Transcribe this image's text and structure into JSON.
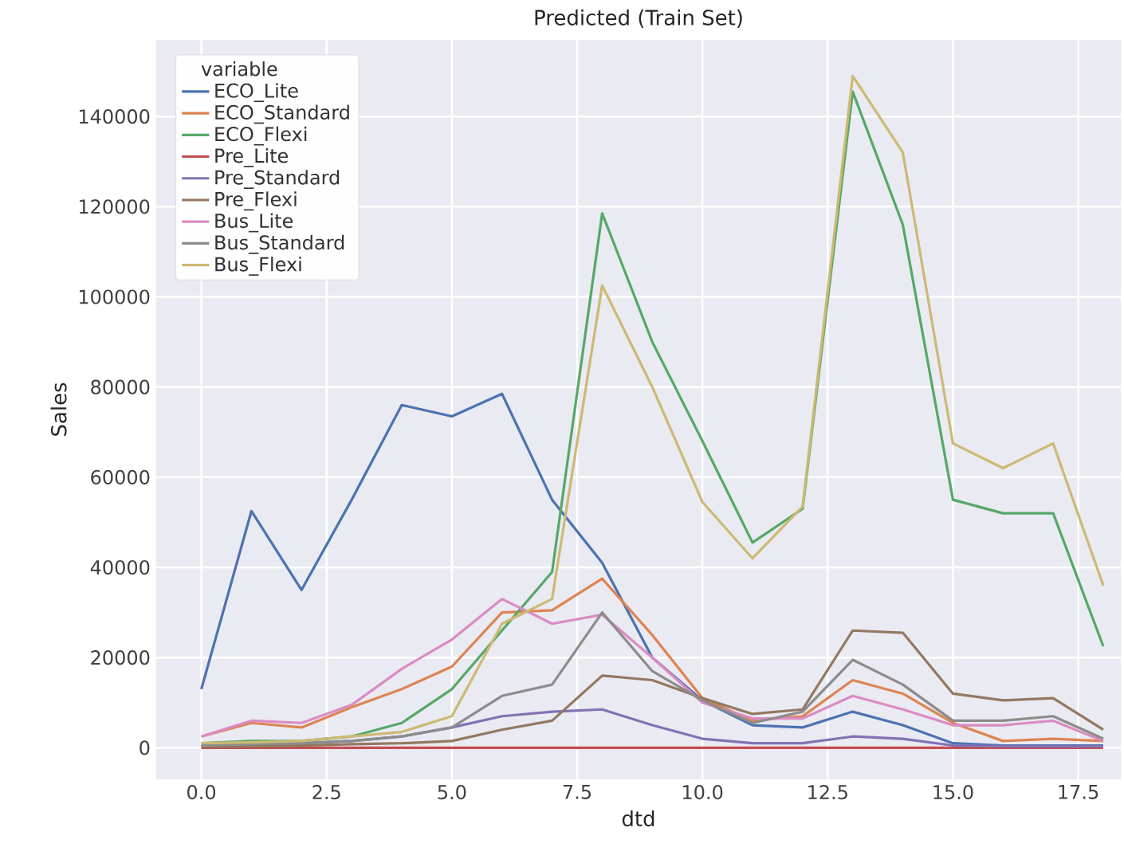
{
  "chart_data": {
    "type": "line",
    "title": "Predicted (Train Set)",
    "xlabel": "dtd",
    "ylabel": "Sales",
    "legend_title": "variable",
    "x": [
      0,
      1,
      2,
      3,
      4,
      5,
      6,
      7,
      8,
      9,
      10,
      11,
      12,
      13,
      14,
      15,
      16,
      17,
      18
    ],
    "xlim": [
      -0.9,
      18.35
    ],
    "ylim": [
      -7000,
      157000
    ],
    "xticks": [
      {
        "value": 0,
        "label": "0.0"
      },
      {
        "value": 2.5,
        "label": "2.5"
      },
      {
        "value": 5,
        "label": "5.0"
      },
      {
        "value": 7.5,
        "label": "7.5"
      },
      {
        "value": 10,
        "label": "10.0"
      },
      {
        "value": 12.5,
        "label": "12.5"
      },
      {
        "value": 15,
        "label": "15.0"
      },
      {
        "value": 17.5,
        "label": "17.5"
      }
    ],
    "yticks": [
      0,
      20000,
      40000,
      60000,
      80000,
      100000,
      120000,
      140000
    ],
    "grid": true,
    "legend": "top left",
    "marker": "none",
    "line_style": "solid",
    "series": [
      {
        "name": "ECO_Lite",
        "color": "#4c72b0",
        "values": [
          13000,
          52500,
          35000,
          55000,
          76000,
          73500,
          78500,
          55000,
          41000,
          20000,
          10500,
          5000,
          4500,
          8000,
          5000,
          1000,
          500,
          500,
          500
        ]
      },
      {
        "name": "ECO_Standard",
        "color": "#dd8452",
        "values": [
          2500,
          5500,
          4500,
          9000,
          13000,
          18000,
          30000,
          30500,
          37500,
          25000,
          11000,
          6000,
          7000,
          15000,
          12000,
          5500,
          1500,
          2000,
          1500
        ]
      },
      {
        "name": "ECO_Flexi",
        "color": "#55a868",
        "values": [
          1000,
          1500,
          1500,
          2500,
          5500,
          13000,
          26000,
          39000,
          118500,
          90000,
          68000,
          45500,
          53000,
          145500,
          116000,
          55000,
          52000,
          52000,
          22500
        ]
      },
      {
        "name": "Pre_Lite",
        "color": "#c44e52",
        "values": [
          0,
          0,
          0,
          0,
          0,
          0,
          0,
          0,
          0,
          0,
          0,
          0,
          0,
          0,
          0,
          0,
          0,
          0,
          0
        ]
      },
      {
        "name": "Pre_Standard",
        "color": "#8172b3",
        "values": [
          500,
          800,
          1000,
          1500,
          2500,
          4500,
          7000,
          8000,
          8500,
          5000,
          2000,
          1000,
          1000,
          2500,
          2000,
          500,
          300,
          300,
          300
        ]
      },
      {
        "name": "Pre_Flexi",
        "color": "#937860",
        "values": [
          200,
          300,
          500,
          800,
          1000,
          1500,
          4000,
          6000,
          16000,
          15000,
          11000,
          7500,
          8500,
          26000,
          25500,
          12000,
          10500,
          11000,
          4000
        ]
      },
      {
        "name": "Bus_Lite",
        "color": "#da8bc3",
        "values": [
          2500,
          6000,
          5500,
          9500,
          17500,
          24000,
          33000,
          27500,
          29500,
          20000,
          10000,
          6500,
          6500,
          11500,
          8500,
          5000,
          5000,
          6000,
          1500
        ]
      },
      {
        "name": "Bus_Standard",
        "color": "#8c8c8c",
        "values": [
          500,
          800,
          1000,
          1500,
          2500,
          4500,
          11500,
          14000,
          30000,
          17000,
          10500,
          5500,
          8000,
          19500,
          14000,
          6000,
          6000,
          7000,
          2000
        ]
      },
      {
        "name": "Bus_Flexi",
        "color": "#ccb974",
        "values": [
          1000,
          1200,
          1500,
          2500,
          3500,
          7000,
          27500,
          33000,
          102500,
          80000,
          54500,
          42000,
          53500,
          149000,
          132000,
          67500,
          62000,
          67500,
          36000
        ]
      }
    ]
  }
}
